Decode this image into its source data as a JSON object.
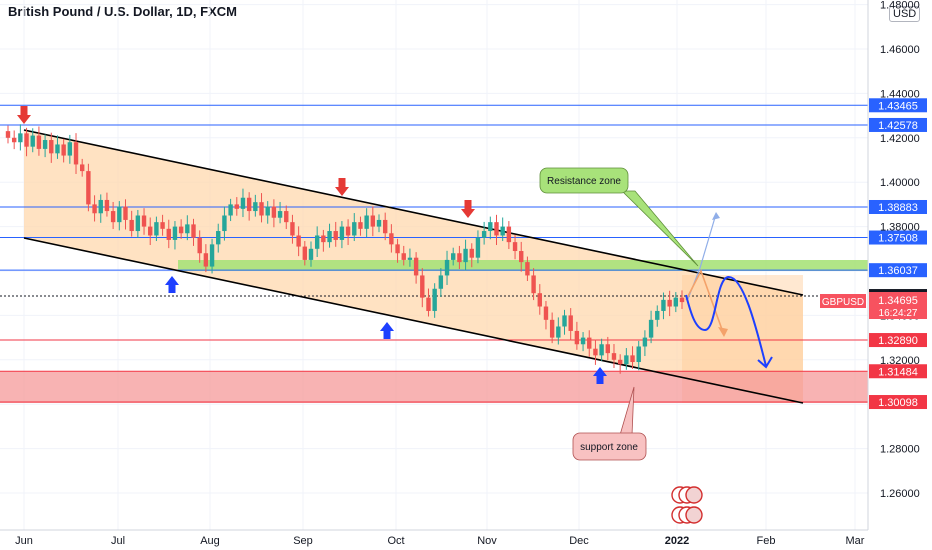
{
  "chart_data": {
    "type": "candlestick",
    "title": "British Pound / U.S. Dollar, 1D, FXCM",
    "currency": "USD",
    "symbol": "GBPUSD",
    "last_price": "1.34695",
    "countdown": "16:24:27",
    "ylim": [
      1.25,
      1.48
    ],
    "y_ticks": [
      "1.26000",
      "1.28000",
      "1.30000",
      "1.32000",
      "1.34000",
      "1.36000",
      "1.38000",
      "1.40000",
      "1.42000",
      "1.44000",
      "1.46000",
      "1.48000"
    ],
    "x_ticks": [
      "Jun",
      "Jul",
      "Aug",
      "Sep",
      "Oct",
      "Nov",
      "Dec",
      "2022",
      "Feb",
      "Mar"
    ],
    "levels": [
      {
        "value": 1.43465,
        "label": "1.43465",
        "color": "#2962ff"
      },
      {
        "value": 1.42578,
        "label": "1.42578",
        "color": "#2962ff"
      },
      {
        "value": 1.38883,
        "label": "1.38883",
        "color": "#2962ff"
      },
      {
        "value": 1.37508,
        "label": "1.37508",
        "color": "#2962ff"
      },
      {
        "value": 1.36037,
        "label": "1.36037",
        "color": "#2962ff"
      },
      {
        "value": 1.34872,
        "label": "1.34872",
        "color": "#131722"
      },
      {
        "value": 1.3289,
        "label": "1.32890",
        "color": "#f23645"
      },
      {
        "value": 1.31484,
        "label": "1.31484",
        "color": "#f23645"
      },
      {
        "value": 1.30098,
        "label": "1.30098",
        "color": "#f23645"
      }
    ],
    "series_close": [
      1.42,
      1.418,
      1.422,
      1.416,
      1.421,
      1.415,
      1.419,
      1.413,
      1.417,
      1.412,
      1.418,
      1.408,
      1.405,
      1.39,
      1.386,
      1.392,
      1.387,
      1.382,
      1.389,
      1.383,
      1.378,
      1.385,
      1.38,
      1.376,
      1.382,
      1.379,
      1.374,
      1.38,
      1.377,
      1.381,
      1.375,
      1.368,
      1.362,
      1.372,
      1.378,
      1.385,
      1.39,
      1.388,
      1.393,
      1.387,
      1.391,
      1.385,
      1.389,
      1.384,
      1.387,
      1.382,
      1.376,
      1.371,
      1.365,
      1.37,
      1.376,
      1.373,
      1.378,
      1.374,
      1.38,
      1.376,
      1.382,
      1.379,
      1.385,
      1.38,
      1.383,
      1.377,
      1.372,
      1.368,
      1.365,
      1.366,
      1.358,
      1.348,
      1.342,
      1.352,
      1.358,
      1.365,
      1.368,
      1.364,
      1.37,
      1.366,
      1.375,
      1.378,
      1.382,
      1.376,
      1.38,
      1.373,
      1.369,
      1.364,
      1.358,
      1.35,
      1.344,
      1.338,
      1.33,
      1.335,
      1.34,
      1.333,
      1.327,
      1.33,
      1.325,
      1.322,
      1.327,
      1.323,
      1.32,
      1.318,
      1.322,
      1.319,
      1.326,
      1.33,
      1.338,
      1.342,
      1.347,
      1.344,
      1.348,
      1.346
    ],
    "annotations": [
      "Resistance zone",
      "support zone"
    ]
  }
}
